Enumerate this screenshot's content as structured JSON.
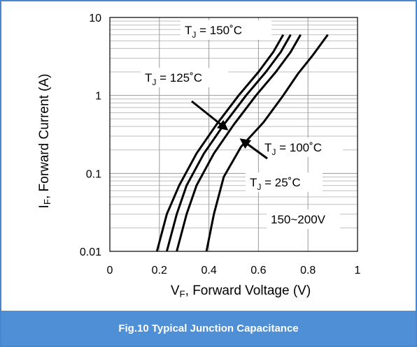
{
  "chart_data": {
    "type": "line",
    "y_scale": "log",
    "xlim": [
      0,
      1
    ],
    "ylim": [
      0.01,
      10
    ],
    "x_ticks": [
      "0",
      "0.2",
      "0.4",
      "0.6",
      "0.8",
      "1"
    ],
    "y_ticks": [
      "0.01",
      "0.1",
      "1",
      "10"
    ],
    "xlabel": {
      "sym": "V",
      "sub": "F",
      "rest": ", Forward Voltage (V)"
    },
    "ylabel": {
      "sym": "I",
      "sub": "F",
      "rest": ", Forward Current (A)"
    },
    "grid": true,
    "series": [
      {
        "name": "T_J = 150˚C",
        "x": [
          0.19,
          0.23,
          0.28,
          0.35,
          0.43,
          0.52,
          0.6,
          0.66,
          0.7
        ],
        "y": [
          0.01,
          0.03,
          0.07,
          0.18,
          0.42,
          1.0,
          2.0,
          3.6,
          6.0
        ]
      },
      {
        "name": "T_J = 125˚C",
        "x": [
          0.23,
          0.27,
          0.31,
          0.38,
          0.46,
          0.55,
          0.63,
          0.69,
          0.73
        ],
        "y": [
          0.01,
          0.03,
          0.07,
          0.18,
          0.42,
          1.0,
          2.0,
          3.6,
          6.0
        ]
      },
      {
        "name": "T_J = 100˚C",
        "x": [
          0.27,
          0.31,
          0.35,
          0.42,
          0.5,
          0.59,
          0.67,
          0.73,
          0.77
        ],
        "y": [
          0.01,
          0.03,
          0.07,
          0.18,
          0.42,
          1.0,
          2.0,
          3.6,
          6.0
        ]
      },
      {
        "name": "T_J = 25˚C",
        "x": [
          0.39,
          0.42,
          0.46,
          0.53,
          0.62,
          0.7,
          0.76,
          0.82,
          0.88
        ],
        "y": [
          0.01,
          0.03,
          0.09,
          0.22,
          0.45,
          1.0,
          1.9,
          3.3,
          6.0
        ]
      }
    ],
    "annotations": [
      {
        "sym": "T",
        "sub": "J",
        "rest": " = 150˚C"
      },
      {
        "sym": "T",
        "sub": "J",
        "rest": " = 125˚C"
      },
      {
        "sym": "T",
        "sub": "J",
        "rest": " = 100˚C"
      },
      {
        "sym": "T",
        "sub": "J",
        "rest": " = 25˚C"
      },
      {
        "text": "150~200V"
      }
    ],
    "colors": {
      "frame": "#4a86cf",
      "caption_bg": "#4f8fd6",
      "line": "#000000",
      "grid": "#bfbfbf"
    }
  },
  "caption": "Fig.10 Typical Junction Capacitance"
}
